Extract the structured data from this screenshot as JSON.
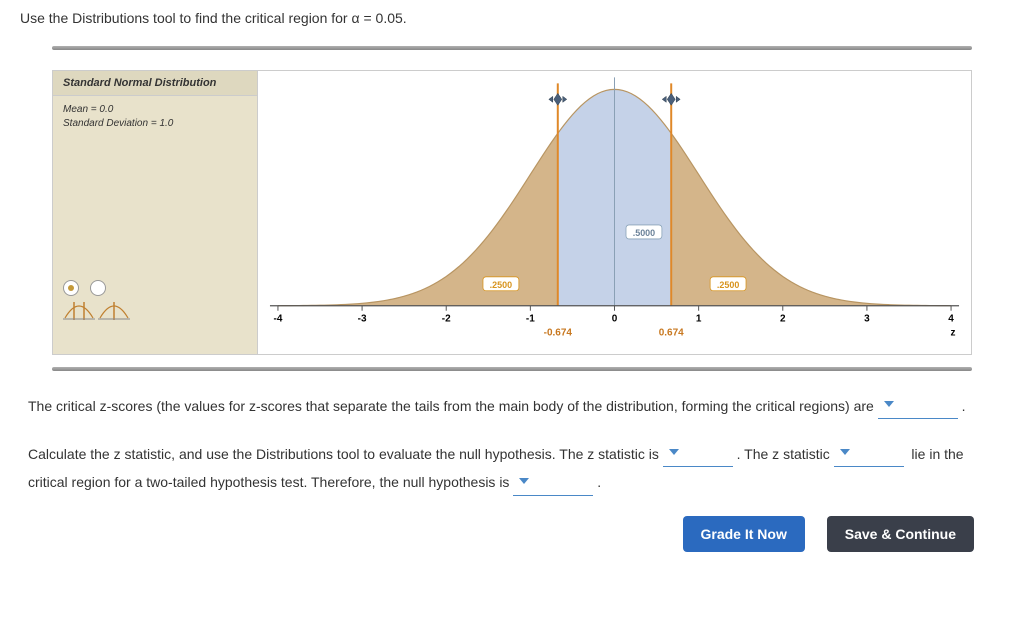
{
  "instruction": "Use the Distributions tool to find the critical region for α = 0.05.",
  "tool": {
    "title": "Standard Normal Distribution",
    "mean_label": "Mean = 0.0",
    "sd_label": "Standard Deviation = 1.0",
    "radio_selected": 0
  },
  "chart": {
    "xmin": -4,
    "xmax": 4,
    "ticks": [
      -4,
      -3,
      -2,
      -1,
      0,
      1,
      2,
      3,
      4
    ],
    "axis_label": "z",
    "left_critical": -0.674,
    "right_critical": 0.674,
    "left_critical_label": "-0.674",
    "right_critical_label": "0.674",
    "tail_area_label": ".2500",
    "center_area_label": ".5000",
    "curve_fill": "#d4b58a",
    "curve_stroke": "#b89562",
    "center_fill": "#c5d2e8",
    "crit_line_color": "#e08828",
    "axis_color": "#555"
  },
  "q1_prefix": "The critical z-scores (the values for z-scores that separate the tails from the main body of the distribution, forming the critical regions) are",
  "q2_p1": "Calculate the z statistic, and use the Distributions tool to evaluate the null hypothesis. The z statistic is",
  "q2_p2": ". The z statistic",
  "q2_p3": "lie",
  "q2_p4": "in the critical region for a two-tailed hypothesis test. Therefore, the null hypothesis is",
  "buttons": {
    "grade": "Grade It Now",
    "save": "Save & Continue"
  }
}
